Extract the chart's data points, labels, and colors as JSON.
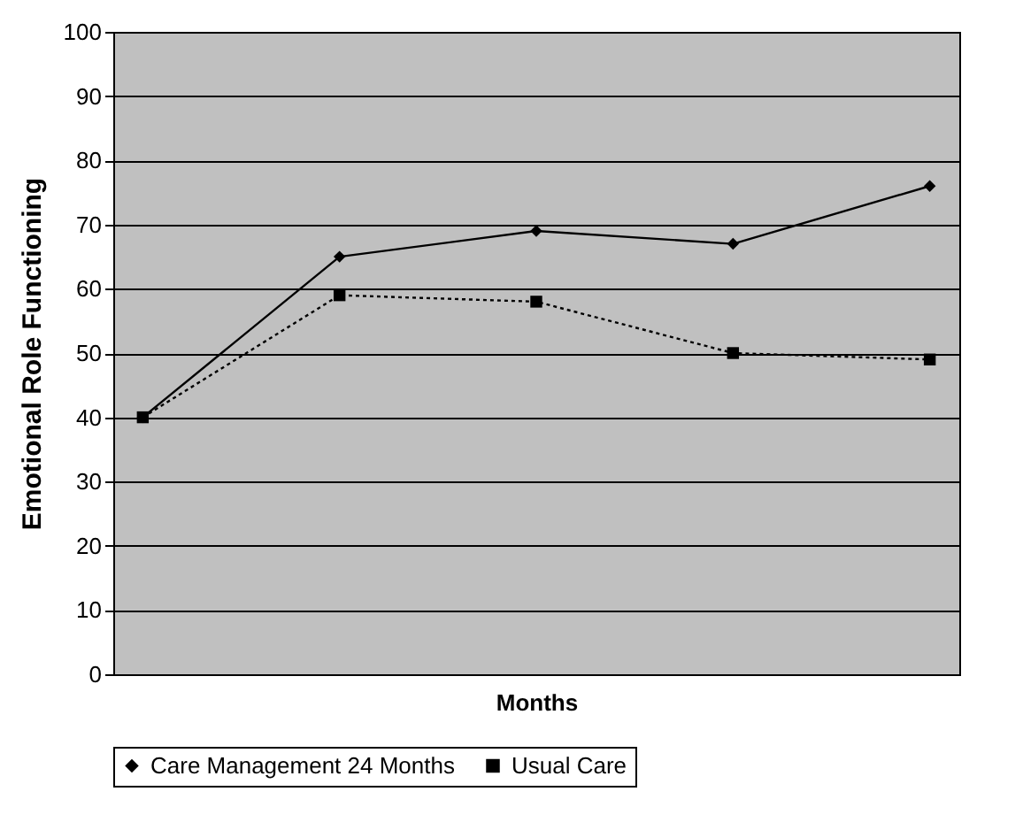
{
  "chart_data": {
    "type": "line",
    "xlabel": "Months",
    "ylabel": "Emotional Role Functioning",
    "categories": [
      null,
      null,
      null,
      null,
      null
    ],
    "series": [
      {
        "name": "Care Management 24 Months",
        "color": "#000000",
        "values": [
          40,
          65,
          69,
          67,
          76
        ],
        "marker": "diamond",
        "line_style": "solid"
      },
      {
        "name": "Usual Care",
        "color": "#000000",
        "values": [
          40,
          59,
          58,
          50,
          49
        ],
        "marker": "square",
        "line_style": "dotted"
      }
    ],
    "ylim": [
      0,
      100
    ],
    "yticks": [
      0,
      10,
      20,
      30,
      40,
      50,
      60,
      70,
      80,
      90,
      100
    ],
    "grid": "y",
    "legend": "bottom",
    "tick_labels": "y"
  }
}
